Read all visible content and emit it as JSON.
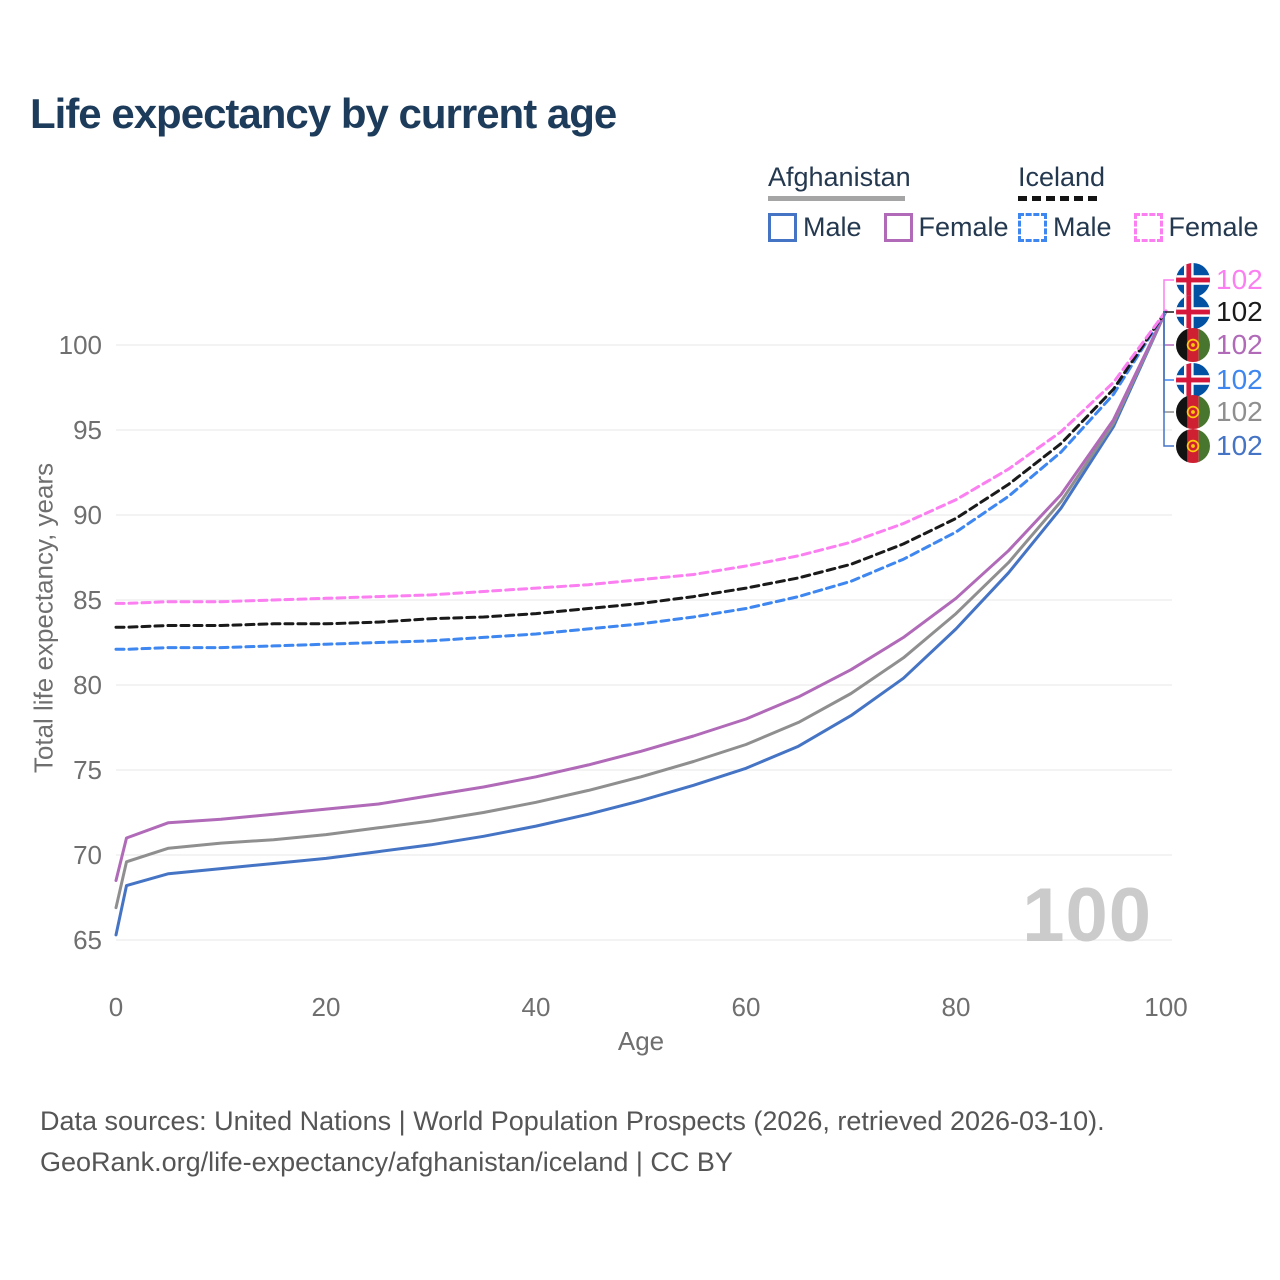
{
  "title": "Life expectancy by current age",
  "legend": {
    "groups": [
      {
        "name": "Afghanistan",
        "items": [
          {
            "label": "Male",
            "color_key": "afg_male"
          },
          {
            "label": "Female",
            "color_key": "afg_female"
          }
        ]
      },
      {
        "name": "Iceland",
        "items": [
          {
            "label": "Male",
            "color_key": "ice_male"
          },
          {
            "label": "Female",
            "color_key": "ice_female"
          }
        ]
      }
    ]
  },
  "colors": {
    "afg_male": "#4574c5",
    "afg_female": "#b06ab8",
    "afg_both": "#8f8f8f",
    "ice_male": "#3e86f0",
    "ice_female": "#fb7ff1",
    "ice_both": "#1a1a1a",
    "title_text": "#1d3b5a",
    "legend_text": "#24384f",
    "axis_text": "#6f6f6f",
    "grid": "#e7e7e7",
    "watermark": "#cbcbcb",
    "afg_rule": "#a5a5a5",
    "footer_text": "#555555"
  },
  "age_counter": "100",
  "end_labels": [
    {
      "value": "102",
      "flag": "iceland",
      "series": "ice_female"
    },
    {
      "value": "102",
      "flag": "iceland",
      "series": "ice_both"
    },
    {
      "value": "102",
      "flag": "afghanistan",
      "series": "afg_female"
    },
    {
      "value": "102",
      "flag": "iceland",
      "series": "ice_male"
    },
    {
      "value": "102",
      "flag": "afghanistan",
      "series": "afg_both"
    },
    {
      "value": "102",
      "flag": "afghanistan",
      "series": "afg_male"
    }
  ],
  "chart_data": {
    "type": "line",
    "title": "Life expectancy by current age",
    "xlabel": "Age",
    "ylabel": "Total life expectancy, years",
    "xlim": [
      0,
      100
    ],
    "ylim": [
      65,
      102.5
    ],
    "x_ticks": [
      0,
      20,
      40,
      60,
      80,
      100
    ],
    "y_ticks": [
      65,
      70,
      75,
      80,
      85,
      90,
      95,
      100
    ],
    "grid": "horizontal",
    "legend_position": "top-right",
    "x": [
      0,
      1,
      5,
      10,
      15,
      20,
      25,
      30,
      35,
      40,
      45,
      50,
      55,
      60,
      65,
      70,
      75,
      80,
      85,
      90,
      95,
      100
    ],
    "series": [
      {
        "name": "Afghanistan Male",
        "key": "afg_male",
        "dashed": false,
        "values": [
          65.3,
          68.2,
          68.9,
          69.2,
          69.5,
          69.8,
          70.2,
          70.6,
          71.1,
          71.7,
          72.4,
          73.2,
          74.1,
          75.1,
          76.4,
          78.2,
          80.4,
          83.3,
          86.6,
          90.4,
          95.2,
          102
        ]
      },
      {
        "name": "Afghanistan Both sexes",
        "key": "afg_both",
        "dashed": false,
        "values": [
          66.9,
          69.6,
          70.4,
          70.7,
          70.9,
          71.2,
          71.6,
          72.0,
          72.5,
          73.1,
          73.8,
          74.6,
          75.5,
          76.5,
          77.8,
          79.5,
          81.6,
          84.2,
          87.2,
          90.8,
          95.4,
          102
        ]
      },
      {
        "name": "Afghanistan Female",
        "key": "afg_female",
        "dashed": false,
        "values": [
          68.5,
          71.0,
          71.9,
          72.1,
          72.4,
          72.7,
          73.0,
          73.5,
          74.0,
          74.6,
          75.3,
          76.1,
          77.0,
          78.0,
          79.3,
          80.9,
          82.8,
          85.1,
          87.9,
          91.2,
          95.6,
          102
        ]
      },
      {
        "name": "Iceland Male",
        "key": "ice_male",
        "dashed": true,
        "values": [
          82.1,
          82.1,
          82.2,
          82.2,
          82.3,
          82.4,
          82.5,
          82.6,
          82.8,
          83.0,
          83.3,
          83.6,
          84.0,
          84.5,
          85.2,
          86.1,
          87.4,
          89.0,
          91.1,
          93.7,
          97.1,
          102
        ]
      },
      {
        "name": "Iceland Both sexes",
        "key": "ice_both",
        "dashed": true,
        "values": [
          83.4,
          83.4,
          83.5,
          83.5,
          83.6,
          83.6,
          83.7,
          83.9,
          84.0,
          84.2,
          84.5,
          84.8,
          85.2,
          85.7,
          86.3,
          87.1,
          88.3,
          89.8,
          91.8,
          94.2,
          97.4,
          102
        ]
      },
      {
        "name": "Iceland Female",
        "key": "ice_female",
        "dashed": true,
        "values": [
          84.8,
          84.8,
          84.9,
          84.9,
          85.0,
          85.1,
          85.2,
          85.3,
          85.5,
          85.7,
          85.9,
          86.2,
          86.5,
          87.0,
          87.6,
          88.4,
          89.5,
          90.9,
          92.7,
          94.9,
          97.8,
          102
        ]
      }
    ]
  },
  "footer": {
    "line1": "Data sources: United Nations | World Population Prospects (2026, retrieved 2026-03-10).",
    "line2": "GeoRank.org/life-expectancy/afghanistan/iceland | CC BY"
  }
}
